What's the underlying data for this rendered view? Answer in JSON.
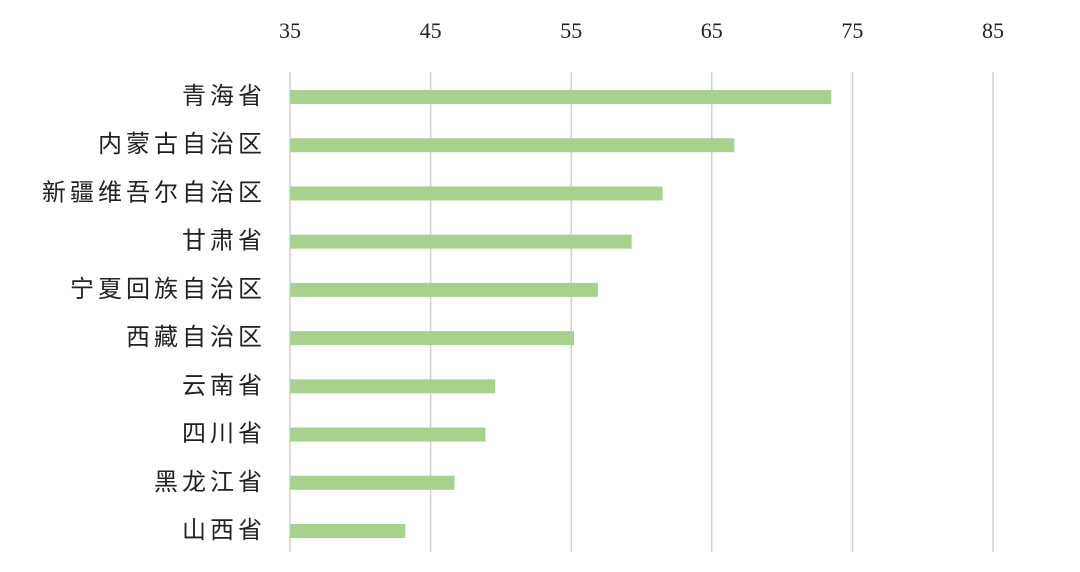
{
  "chart_data": {
    "type": "bar",
    "orientation": "horizontal",
    "categories": [
      "青海省",
      "内蒙古自治区",
      "新疆维吾尔自治区",
      "甘肃省",
      "宁夏回族自治区",
      "西藏自治区",
      "云南省",
      "四川省",
      "黑龙江省",
      "山西省"
    ],
    "values": [
      73.5,
      66.6,
      61.5,
      59.3,
      56.9,
      55.2,
      49.6,
      48.9,
      46.7,
      43.2
    ],
    "color": "#a9d18e",
    "xlim": [
      35,
      85
    ],
    "xticks": [
      35,
      45,
      55,
      65,
      75,
      85
    ],
    "grid": true
  }
}
